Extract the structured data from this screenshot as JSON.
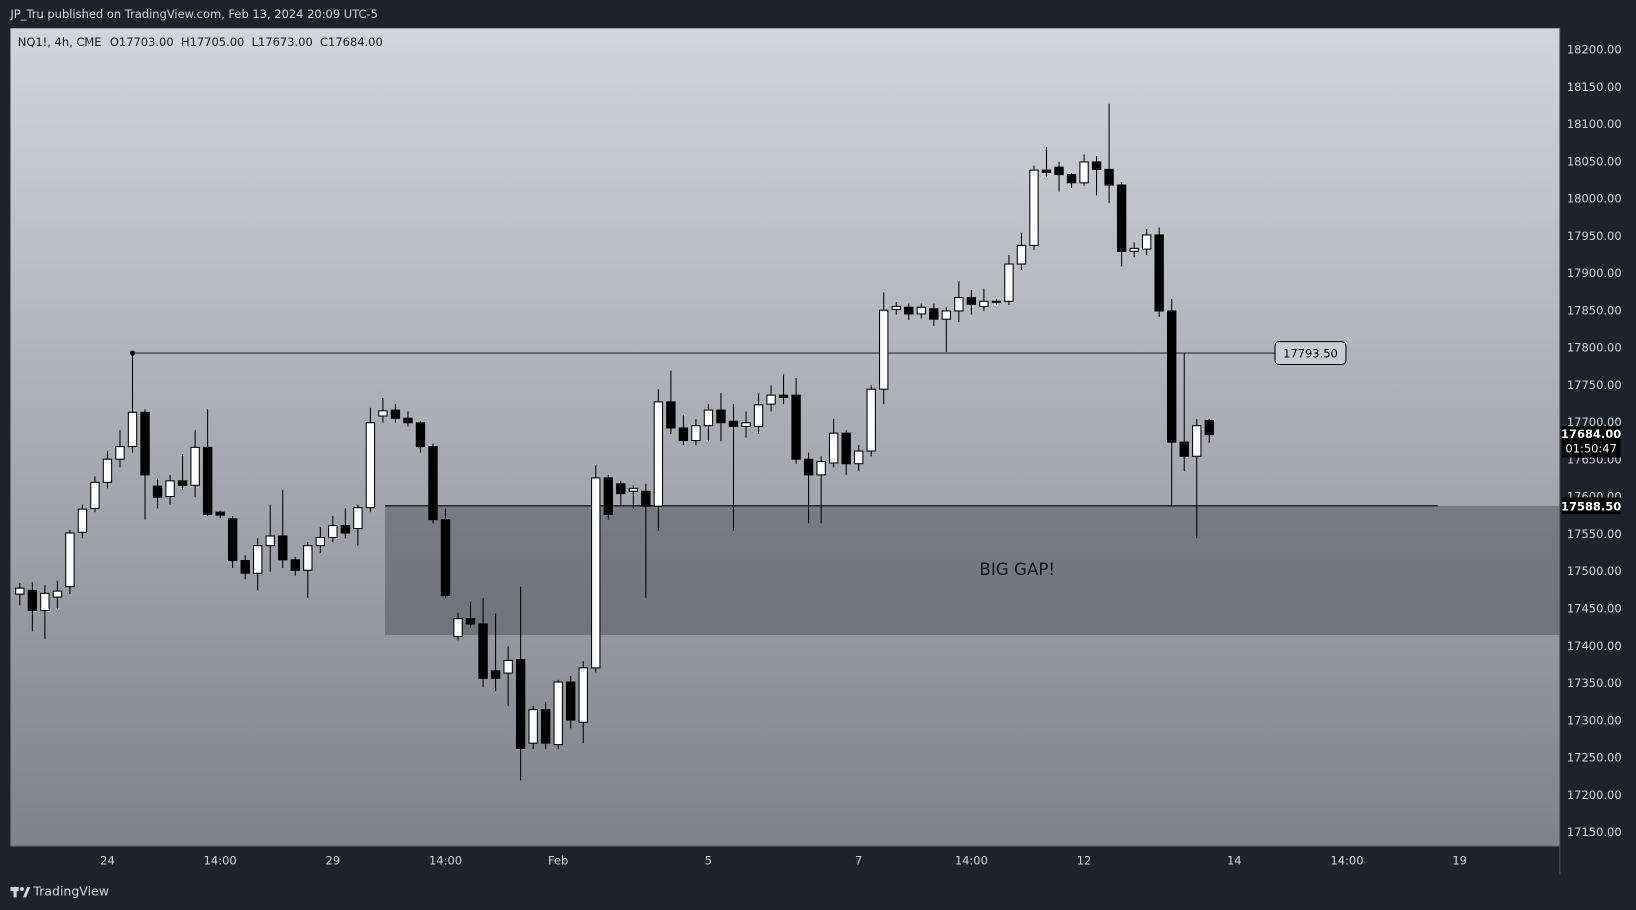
{
  "chart_data": {
    "type": "candlestick",
    "published": "JP_Tru published on TradingView.com, Feb 13, 2024 20:09 UTC-5",
    "symbol": "NQ1!, 4h, CME",
    "header_ohlc": [
      "O17703.00",
      "H17705.00",
      "L17673.00",
      "C17684.00"
    ],
    "brand": "TradingView",
    "up_color": "#ffffff",
    "down_color": "#000000",
    "categories": [
      null,
      null,
      null,
      null,
      null,
      null,
      null,
      "24",
      null,
      null,
      null,
      null,
      null,
      null,
      null,
      null,
      "14:00",
      null,
      null,
      null,
      null,
      null,
      null,
      null,
      null,
      "29",
      null,
      null,
      null,
      null,
      null,
      null,
      null,
      null,
      "14:00",
      null,
      null,
      null,
      null,
      null,
      null,
      null,
      null,
      "Feb",
      null,
      null,
      null,
      null,
      null,
      null,
      null,
      null,
      null,
      null,
      null,
      "5",
      null,
      null,
      null,
      null,
      null,
      null,
      null,
      null,
      null,
      null,
      null,
      "7",
      null,
      null,
      null,
      null,
      null,
      null,
      null,
      null,
      "14:00",
      null,
      null,
      null,
      null,
      null,
      null,
      null,
      null,
      "12",
      null,
      null,
      null,
      null,
      null,
      null,
      null,
      null,
      null,
      null,
      null,
      "14",
      null,
      null,
      null,
      null,
      null,
      null,
      null,
      null,
      "14:00",
      null,
      null,
      null,
      null,
      null,
      null,
      null,
      null,
      "19",
      null,
      null,
      null,
      null,
      null,
      null,
      null
    ],
    "open": [
      17470,
      17475,
      17448,
      17466,
      17480,
      17553,
      17585,
      17620,
      17651,
      17668,
      17714,
      17615,
      17601,
      17622,
      17616,
      17667,
      17580,
      17571,
      17515,
      17498,
      17535,
      17548,
      17516,
      17502,
      17535,
      17546,
      17562,
      17558,
      17586,
      17709,
      17717,
      17706,
      17700,
      17668,
      17570,
      17413,
      17437,
      17430,
      17367,
      17364,
      17382,
      17270,
      17315,
      17268,
      17352,
      17298,
      17371,
      17626,
      17618,
      17608,
      17608,
      17588,
      17728,
      17693,
      17676,
      17696,
      17717,
      17702,
      17695,
      17695,
      17725,
      17737,
      17737,
      17651,
      17630,
      17646,
      17686,
      17645,
      17662,
      17745,
      17852,
      17855,
      17846,
      17853,
      17839,
      17850,
      17868,
      17856,
      17862,
      17863,
      17913,
      17938,
      18039,
      18043,
      18033,
      18022,
      18050,
      18040,
      18019,
      17930,
      17933,
      17952,
      17850,
      17674,
      17655,
      17703,
      null,
      null,
      null,
      null,
      null,
      null,
      null,
      null,
      null,
      null,
      null,
      null,
      null,
      null,
      null,
      null,
      null,
      null,
      null,
      null,
      null,
      null,
      null,
      null,
      null,
      null,
      null
    ],
    "high": [
      17485,
      17486,
      17482,
      17488,
      17556,
      17590,
      17628,
      17662,
      17690,
      17793.5,
      17718,
      17625,
      17630,
      17658,
      17690,
      17718,
      17582,
      17575,
      17522,
      17545,
      17590,
      17610,
      17520,
      17540,
      17560,
      17575,
      17585,
      17590,
      17720,
      17733,
      17725,
      17715,
      17702,
      17672,
      17585,
      17445,
      17460,
      17465,
      17444,
      17400,
      17480,
      17320,
      17325,
      17355,
      17360,
      17380,
      17643,
      17630,
      17622,
      17616,
      17618,
      17745,
      17770,
      17710,
      17705,
      17725,
      17740,
      17725,
      17715,
      17740,
      17750,
      17765,
      17760,
      17660,
      17655,
      17705,
      17690,
      17670,
      17750,
      17875,
      17862,
      17860,
      17860,
      17860,
      17855,
      17890,
      17878,
      17880,
      17866,
      17925,
      17955,
      18045,
      18070,
      18050,
      18035,
      18060,
      18058,
      18128,
      18023,
      17942,
      17960,
      17962,
      17866,
      17793,
      17705,
      17705,
      null,
      null,
      null,
      null,
      null,
      null,
      null,
      null,
      null,
      null,
      null,
      null,
      null,
      null,
      null,
      null,
      null,
      null,
      null,
      null,
      null,
      null,
      null,
      null,
      null,
      null,
      null
    ],
    "low": [
      17455,
      17420,
      17410,
      17450,
      17470,
      17545,
      17580,
      17612,
      17640,
      17660,
      17570,
      17585,
      17590,
      17610,
      17600,
      17575,
      17572,
      17505,
      17490,
      17475,
      17500,
      17505,
      17495,
      17465,
      17525,
      17540,
      17545,
      17535,
      17580,
      17700,
      17700,
      17695,
      17660,
      17565,
      17465,
      17408,
      17425,
      17345,
      17340,
      17320,
      17220,
      17262,
      17262,
      17262,
      17290,
      17270,
      17365,
      17570,
      17590,
      17585,
      17465,
      17555,
      17685,
      17670,
      17670,
      17675,
      17675,
      17555,
      17680,
      17685,
      17715,
      17725,
      17645,
      17565,
      17565,
      17640,
      17630,
      17635,
      17655,
      17725,
      17845,
      17838,
      17840,
      17830,
      17795,
      17835,
      17845,
      17850,
      17858,
      17858,
      17905,
      17932,
      18030,
      18010,
      18015,
      18018,
      18005,
      17995,
      17910,
      17922,
      17925,
      17842,
      17590,
      17635,
      17545,
      17673,
      null,
      null,
      null,
      null,
      null,
      null,
      null,
      null,
      null,
      null,
      null,
      null,
      null,
      null,
      null,
      null,
      null,
      null,
      null,
      null,
      null,
      null,
      null,
      null,
      null,
      null,
      null
    ],
    "close": [
      17478,
      17448,
      17471,
      17474,
      17552,
      17584,
      17620,
      17651,
      17668,
      17714,
      17630,
      17600,
      17622,
      17616,
      17667,
      17577,
      17576,
      17515,
      17498,
      17535,
      17548,
      17516,
      17502,
      17535,
      17546,
      17562,
      17552,
      17586,
      17700,
      17716,
      17706,
      17700,
      17668,
      17570,
      17468,
      17437,
      17430,
      17357,
      17357,
      17381,
      17263,
      17315,
      17270,
      17352,
      17301,
      17371,
      17626,
      17577,
      17605,
      17612,
      17588,
      17728,
      17693,
      17676,
      17696,
      17717,
      17700,
      17695,
      17700,
      17724,
      17737,
      17734,
      17651,
      17630,
      17648,
      17686,
      17645,
      17662,
      17745,
      17851,
      17856,
      17846,
      17855,
      17839,
      17850,
      17868,
      17859,
      17863,
      17863,
      17913,
      17938,
      18039,
      18036,
      18033,
      18022,
      18050,
      18040,
      18019,
      17930,
      17934,
      17952,
      17850,
      17674,
      17655,
      17696,
      17684,
      null,
      null,
      null,
      null,
      null,
      null,
      null,
      null,
      null,
      null,
      null,
      null,
      null,
      null,
      null,
      null,
      null,
      null,
      null,
      null,
      null,
      null,
      null,
      null,
      null,
      null,
      null
    ],
    "ylim": [
      17133,
      18228
    ],
    "yticks": [
      {
        "value": 17150,
        "label": "17150.00"
      },
      {
        "value": 17200,
        "label": "17200.00"
      },
      {
        "value": 17250,
        "label": "17250.00"
      },
      {
        "value": 17300,
        "label": "17300.00"
      },
      {
        "value": 17350,
        "label": "17350.00"
      },
      {
        "value": 17400,
        "label": "17400.00"
      },
      {
        "value": 17450,
        "label": "17450.00"
      },
      {
        "value": 17500,
        "label": "17500.00"
      },
      {
        "value": 17550,
        "label": "17550.00"
      },
      {
        "value": 17600,
        "label": "17600.00"
      },
      {
        "value": 17650,
        "label": "17650.00"
      },
      {
        "value": 17700,
        "label": "17700.00"
      },
      {
        "value": 17750,
        "label": "17750.00"
      },
      {
        "value": 17800,
        "label": "17800.00"
      },
      {
        "value": 17850,
        "label": "17850.00"
      },
      {
        "value": 17900,
        "label": "17900.00"
      },
      {
        "value": 17950,
        "label": "17950.00"
      },
      {
        "value": 18000,
        "label": "18000.00"
      },
      {
        "value": 18050,
        "label": "18050.00"
      },
      {
        "value": 18100,
        "label": "18100.00"
      },
      {
        "value": 18150,
        "label": "18150.00"
      },
      {
        "value": 18200,
        "label": "18200.00"
      }
    ],
    "level": {
      "value": 17793.5,
      "label": "17793.50"
    },
    "gap": {
      "top": {
        "value": 17588.5,
        "label": "17588.50"
      },
      "bottom": 17415,
      "text": "BIG GAP!"
    },
    "last_price": {
      "value": 17684,
      "label": "17684.00"
    },
    "countdown": "01:50:47"
  }
}
